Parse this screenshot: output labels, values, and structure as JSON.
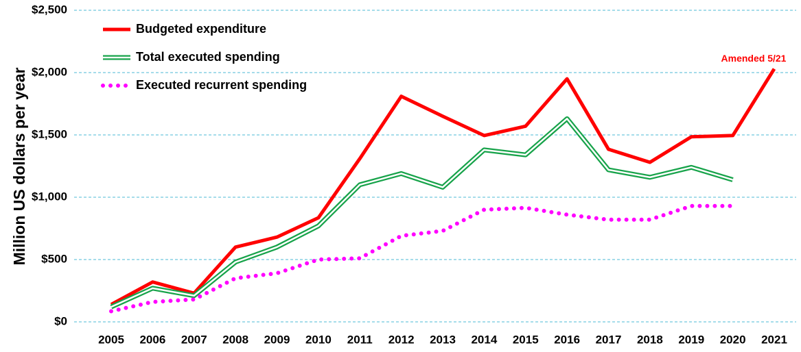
{
  "chart_data": {
    "type": "line",
    "ylabel": "Million US dollars per year",
    "annotation": "Amended 5/21",
    "categories": [
      "2005",
      "2006",
      "2007",
      "2008",
      "2009",
      "2010",
      "2011",
      "2012",
      "2013",
      "2014",
      "2015",
      "2016",
      "2017",
      "2018",
      "2019",
      "2020",
      "2021"
    ],
    "series": [
      {
        "name": "Budgeted expenditure",
        "color": "#ff0000",
        "style": "solid",
        "values": [
          140,
          320,
          230,
          600,
          680,
          835,
          1310,
          1810,
          1650,
          1495,
          1570,
          1950,
          1385,
          1280,
          1485,
          1495,
          2030
        ]
      },
      {
        "name": "Total executed spending",
        "color": "#17a34a",
        "style": "double",
        "values": [
          120,
          270,
          210,
          480,
          600,
          770,
          1100,
          1190,
          1080,
          1380,
          1340,
          1630,
          1220,
          1160,
          1240,
          1140,
          null
        ]
      },
      {
        "name": "Executed recurrent spending",
        "color": "#ff00ff",
        "style": "dotted",
        "values": [
          85,
          160,
          180,
          350,
          390,
          500,
          510,
          690,
          730,
          900,
          915,
          860,
          820,
          820,
          930,
          930,
          null
        ]
      }
    ],
    "ylim": [
      0,
      2500
    ],
    "yticks": [
      {
        "value": 0,
        "label": "$0"
      },
      {
        "value": 500,
        "label": "$500"
      },
      {
        "value": 1000,
        "label": "$1,000"
      },
      {
        "value": 1500,
        "label": "$1,500"
      },
      {
        "value": 2000,
        "label": "$2,000"
      },
      {
        "value": 2500,
        "label": "$2,500"
      }
    ],
    "grid": true,
    "legend": "upper left"
  }
}
